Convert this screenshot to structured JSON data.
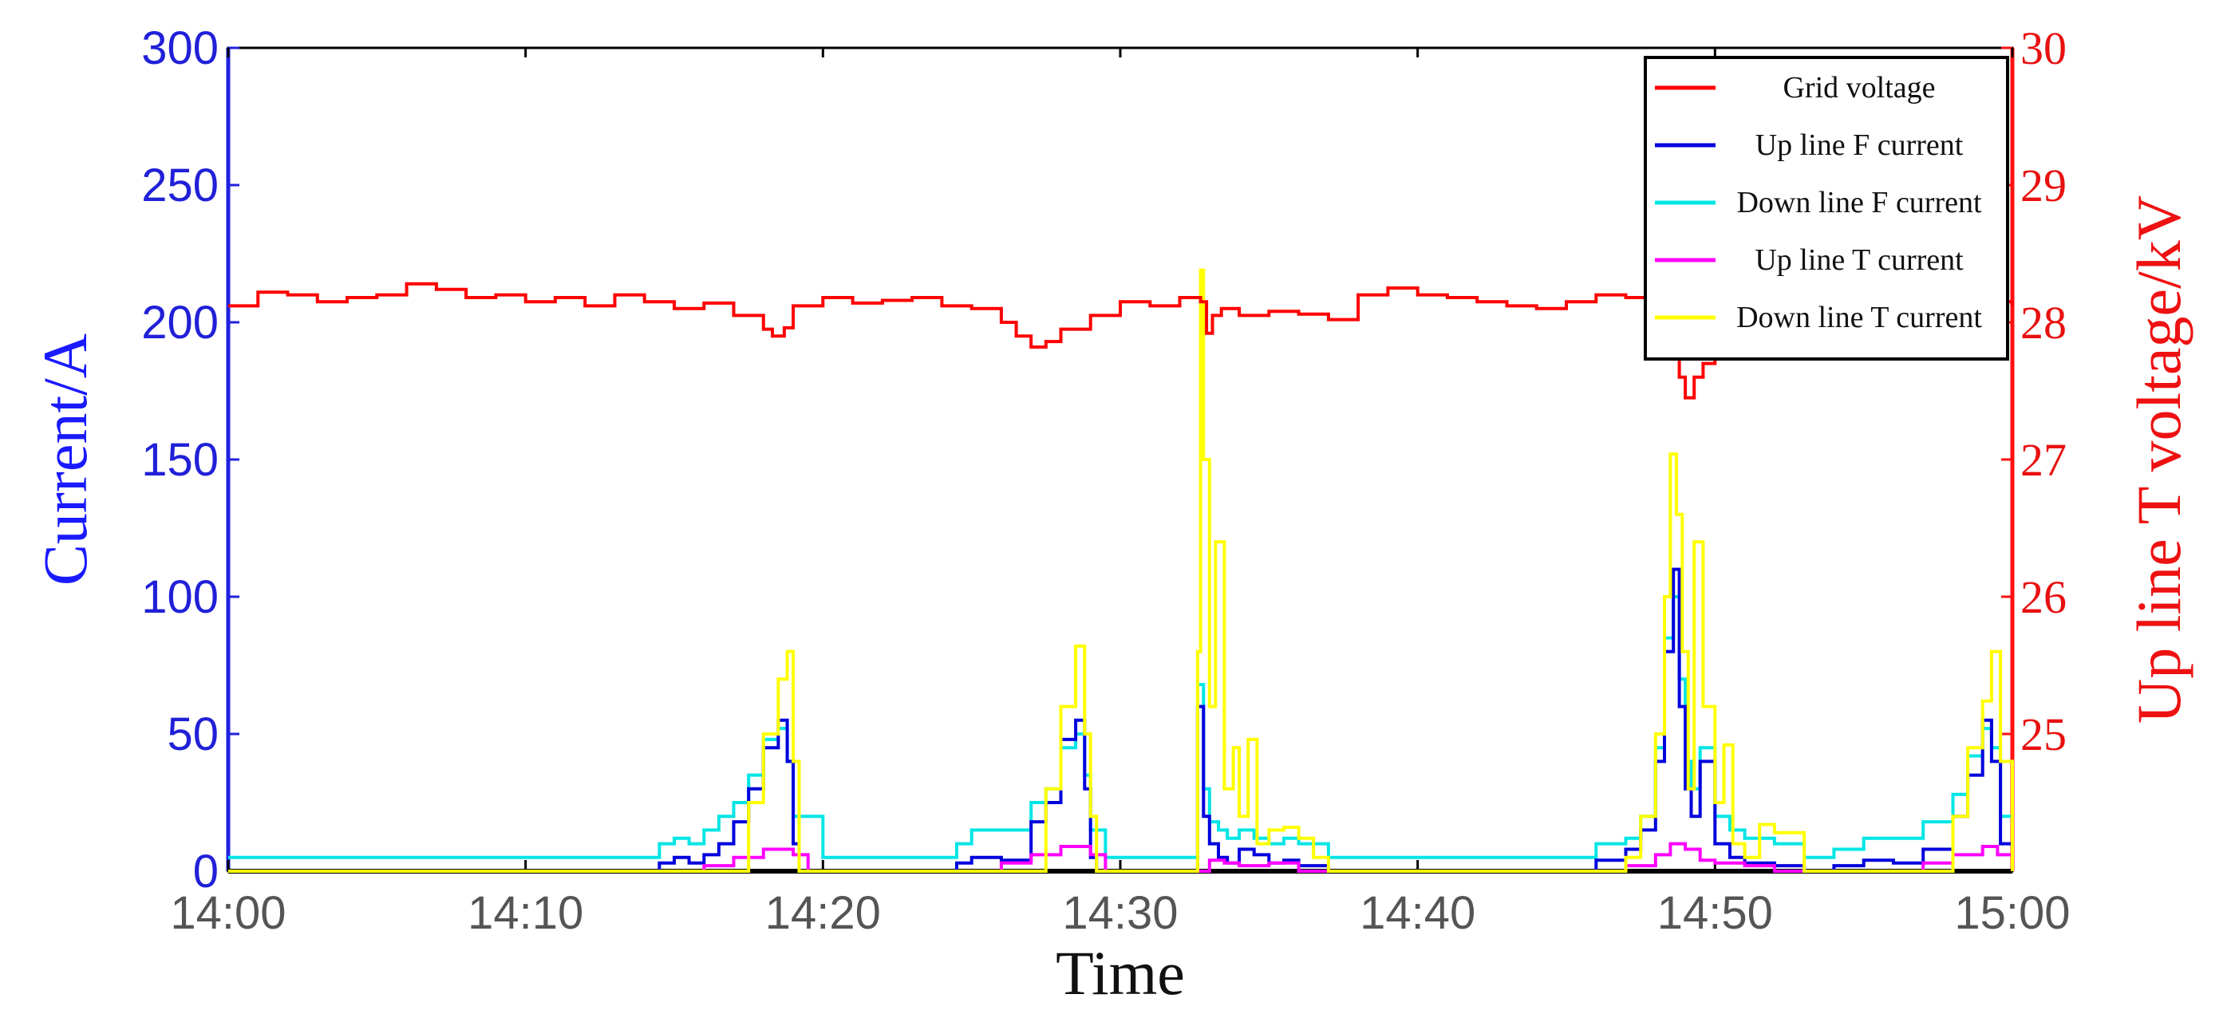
{
  "chart_data": {
    "type": "line",
    "xlabel": "Time",
    "ylabel_left": "Current/A",
    "ylabel_right": "Up line T voltage/kV",
    "x_ticks": [
      "14:00",
      "14:10",
      "14:20",
      "14:30",
      "14:40",
      "14:50",
      "15:00"
    ],
    "xlim_minutes": [
      0,
      60
    ],
    "y_left_ticks": [
      "0",
      "50",
      "100",
      "150",
      "200",
      "250",
      "300"
    ],
    "ylim_left": [
      0,
      300
    ],
    "y_right_ticks": [
      "25",
      "26",
      "27",
      "28",
      "29",
      "30"
    ],
    "ylim_right": [
      24,
      30
    ],
    "legend_position": "top-right",
    "series": [
      {
        "name": "Grid voltage",
        "axis": "right",
        "color": "#ff0000",
        "x": [
          0,
          1,
          2,
          3,
          4,
          5,
          6,
          7,
          8,
          9,
          10,
          11,
          12,
          13,
          14,
          15,
          16,
          17,
          18,
          18.3,
          18.7,
          19,
          20,
          21,
          22,
          23,
          24,
          25,
          26,
          26.5,
          27,
          27.5,
          28,
          29,
          30,
          31,
          32,
          32.7,
          32.9,
          33.1,
          33.4,
          34,
          35,
          36,
          37,
          38,
          39,
          40,
          41,
          42,
          43,
          44,
          45,
          46,
          47,
          48,
          48.5,
          48.8,
          49,
          49.3,
          49.6,
          50,
          51,
          52,
          53,
          54,
          55,
          56,
          57,
          58,
          59,
          60
        ],
        "y": [
          28.12,
          28.22,
          28.2,
          28.15,
          28.18,
          28.2,
          28.28,
          28.24,
          28.18,
          28.2,
          28.15,
          28.18,
          28.12,
          28.2,
          28.15,
          28.1,
          28.14,
          28.05,
          27.95,
          27.9,
          27.96,
          28.12,
          28.18,
          28.14,
          28.16,
          28.18,
          28.12,
          28.1,
          28.0,
          27.9,
          27.82,
          27.86,
          27.95,
          28.05,
          28.15,
          28.12,
          28.18,
          28.15,
          27.92,
          28.05,
          28.1,
          28.05,
          28.08,
          28.06,
          28.02,
          28.2,
          28.25,
          28.2,
          28.18,
          28.15,
          28.12,
          28.1,
          28.15,
          28.2,
          28.18,
          28.12,
          28.08,
          27.6,
          27.45,
          27.6,
          27.7,
          27.9,
          28.05,
          28.1,
          28.12,
          28.15,
          28.15,
          28.12,
          28.15,
          28.15,
          28.15,
          28.12
        ]
      },
      {
        "name": "Up line F current",
        "axis": "left",
        "color": "#0000dd",
        "x": [
          0,
          14,
          14.5,
          15,
          15.5,
          16,
          16.5,
          17,
          17.5,
          18,
          18.5,
          18.8,
          19,
          19.2,
          24,
          24.5,
          25,
          26,
          27,
          27.5,
          28,
          28.5,
          28.8,
          29,
          29.2,
          32.5,
          32.6,
          32.8,
          33,
          33.3,
          33.6,
          34,
          34.5,
          35,
          35.5,
          36,
          37,
          45,
          46,
          47,
          47.5,
          48,
          48.3,
          48.6,
          48.8,
          49,
          49.2,
          49.5,
          50,
          50.5,
          51,
          52,
          53,
          54,
          55,
          56,
          57,
          58,
          58.5,
          59,
          59.3,
          59.6,
          60
        ],
        "y": [
          0,
          0,
          3,
          5,
          3,
          6,
          10,
          18,
          30,
          45,
          55,
          40,
          10,
          0,
          0,
          3,
          5,
          4,
          18,
          25,
          48,
          55,
          30,
          5,
          0,
          0,
          60,
          20,
          10,
          5,
          3,
          8,
          6,
          3,
          4,
          2,
          0,
          0,
          4,
          8,
          15,
          40,
          80,
          110,
          60,
          30,
          20,
          40,
          10,
          5,
          3,
          2,
          0,
          2,
          4,
          3,
          8,
          20,
          35,
          55,
          40,
          10,
          0
        ]
      },
      {
        "name": "Down line F current",
        "axis": "left",
        "color": "#00e5e5",
        "x": [
          0,
          14,
          14.5,
          15,
          15.5,
          16,
          16.5,
          17,
          17.5,
          18,
          18.5,
          18.8,
          19,
          20,
          24,
          24.5,
          25,
          26,
          27,
          27.5,
          28,
          28.5,
          28.8,
          29,
          29.5,
          32.5,
          32.6,
          32.8,
          33,
          33.3,
          33.6,
          34,
          34.5,
          35,
          35.5,
          36,
          37,
          45,
          46,
          47,
          47.5,
          48,
          48.3,
          48.6,
          48.8,
          49,
          49.2,
          49.5,
          50,
          50.5,
          51,
          52,
          53,
          54,
          55,
          56,
          57,
          58,
          58.5,
          59,
          59.3,
          59.6,
          60
        ],
        "y": [
          5,
          5,
          10,
          12,
          10,
          15,
          20,
          25,
          35,
          48,
          52,
          40,
          20,
          5,
          5,
          10,
          15,
          15,
          25,
          30,
          45,
          50,
          35,
          15,
          5,
          5,
          68,
          30,
          18,
          15,
          12,
          15,
          12,
          10,
          12,
          10,
          5,
          5,
          10,
          12,
          20,
          45,
          85,
          100,
          70,
          40,
          30,
          45,
          20,
          15,
          12,
          10,
          5,
          8,
          12,
          12,
          18,
          28,
          42,
          52,
          45,
          20,
          5
        ]
      },
      {
        "name": "Up line T current",
        "axis": "left",
        "color": "#ff00ff",
        "x": [
          0,
          15,
          16,
          17,
          18,
          19,
          19.5,
          25,
          26,
          27,
          28,
          29,
          29.5,
          32.5,
          33,
          33.5,
          34,
          35,
          36,
          46,
          47,
          48,
          48.5,
          49,
          49.5,
          50,
          51,
          52,
          56,
          57,
          58,
          59,
          59.5,
          60
        ],
        "y": [
          0,
          0,
          2,
          5,
          8,
          6,
          0,
          0,
          3,
          6,
          9,
          6,
          0,
          0,
          4,
          3,
          2,
          3,
          0,
          0,
          2,
          6,
          10,
          8,
          4,
          3,
          2,
          0,
          0,
          3,
          6,
          9,
          6,
          0
        ]
      },
      {
        "name": "Down line T current",
        "axis": "left",
        "color": "#ffff00",
        "x": [
          0,
          17,
          17.5,
          18,
          18.5,
          18.8,
          19,
          19.2,
          27,
          27.5,
          28,
          28.5,
          28.8,
          29,
          29.2,
          32.5,
          32.6,
          32.7,
          32.8,
          33,
          33.2,
          33.5,
          33.8,
          34,
          34.3,
          34.6,
          35,
          35.5,
          36,
          36.5,
          37,
          46,
          47,
          47.5,
          48,
          48.3,
          48.5,
          48.7,
          48.9,
          49.1,
          49.3,
          49.6,
          50,
          50.3,
          50.6,
          51,
          51.5,
          52,
          53,
          57,
          58,
          58.5,
          59,
          59.3,
          59.6,
          60
        ],
        "y": [
          0,
          0,
          25,
          50,
          70,
          80,
          40,
          0,
          0,
          30,
          60,
          82,
          50,
          20,
          0,
          0,
          80,
          219,
          150,
          60,
          120,
          30,
          45,
          20,
          48,
          10,
          15,
          16,
          12,
          5,
          0,
          0,
          5,
          20,
          50,
          100,
          152,
          130,
          80,
          30,
          120,
          60,
          25,
          46,
          10,
          5,
          17,
          14,
          0,
          0,
          20,
          45,
          62,
          80,
          40,
          0
        ]
      }
    ]
  }
}
